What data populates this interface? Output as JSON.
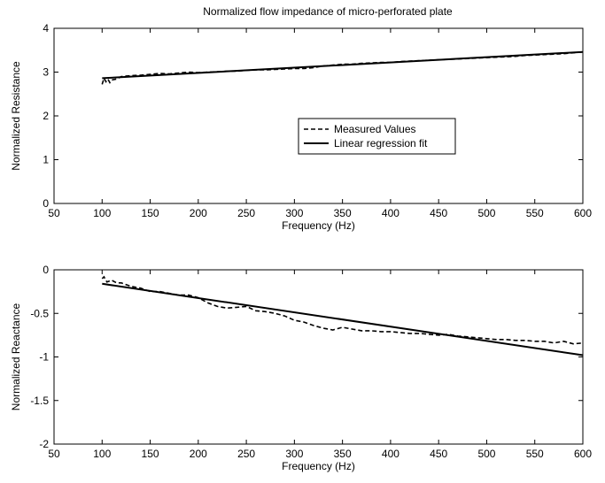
{
  "title": "Normalized flow impedance of micro-perforated plate",
  "chart_data": [
    {
      "type": "line",
      "xlabel": "Frequency (Hz)",
      "ylabel": "Normalized Resistance",
      "xlim": [
        50,
        600
      ],
      "ylim": [
        0,
        4
      ],
      "xticks": [
        "50",
        "100",
        "150",
        "200",
        "250",
        "300",
        "350",
        "400",
        "450",
        "500",
        "550",
        "600"
      ],
      "yticks": [
        "0",
        "1",
        "2",
        "3",
        "4"
      ],
      "grid": false,
      "legend": {
        "placement": "center-right",
        "entries": [
          "Measured Values",
          "Linear regression fit"
        ]
      },
      "series": [
        {
          "name": "Measured Values",
          "style": "dashed",
          "x": [
            100,
            102,
            104,
            106,
            108,
            110,
            115,
            120,
            130,
            140,
            150,
            160,
            170,
            180,
            190,
            200,
            210,
            220,
            230,
            240,
            250,
            260,
            270,
            280,
            290,
            300,
            310,
            320,
            330,
            340,
            350,
            360,
            370,
            380,
            390,
            400,
            410,
            420,
            430,
            440,
            450,
            460,
            470,
            480,
            490,
            500,
            510,
            520,
            530,
            540,
            550,
            560,
            570,
            580,
            590,
            600
          ],
          "values": [
            2.72,
            2.86,
            2.78,
            2.84,
            2.76,
            2.82,
            2.84,
            2.9,
            2.92,
            2.93,
            2.95,
            2.97,
            2.96,
            2.98,
            3.0,
            2.99,
            3.0,
            3.01,
            3.02,
            3.02,
            3.04,
            3.05,
            3.05,
            3.06,
            3.07,
            3.08,
            3.08,
            3.1,
            3.14,
            3.16,
            3.18,
            3.18,
            3.2,
            3.21,
            3.22,
            3.22,
            3.24,
            3.25,
            3.26,
            3.27,
            3.28,
            3.29,
            3.3,
            3.31,
            3.32,
            3.33,
            3.34,
            3.35,
            3.36,
            3.38,
            3.39,
            3.4,
            3.41,
            3.42,
            3.44,
            3.46
          ]
        },
        {
          "name": "Linear regression fit",
          "style": "solid",
          "x": [
            100,
            600
          ],
          "values": [
            2.86,
            3.46
          ]
        }
      ]
    },
    {
      "type": "line",
      "xlabel": "Frequency (Hz)",
      "ylabel": "Normalized Reactance",
      "xlim": [
        50,
        600
      ],
      "ylim": [
        -2,
        0
      ],
      "xticks": [
        "50",
        "100",
        "150",
        "200",
        "250",
        "300",
        "350",
        "400",
        "450",
        "500",
        "550",
        "600"
      ],
      "yticks": [
        "0",
        "-0.5",
        "-1",
        "-1.5",
        "-2"
      ],
      "grid": false,
      "series": [
        {
          "name": "Measured Values",
          "style": "dashed",
          "x": [
            100,
            102,
            105,
            110,
            115,
            120,
            130,
            140,
            150,
            160,
            170,
            180,
            190,
            200,
            210,
            220,
            230,
            240,
            250,
            260,
            270,
            280,
            290,
            300,
            310,
            320,
            330,
            340,
            350,
            360,
            370,
            380,
            390,
            400,
            410,
            420,
            430,
            440,
            450,
            460,
            470,
            480,
            490,
            500,
            510,
            520,
            530,
            540,
            550,
            560,
            570,
            580,
            590,
            600
          ],
          "values": [
            -0.1,
            -0.08,
            -0.14,
            -0.12,
            -0.15,
            -0.15,
            -0.19,
            -0.21,
            -0.25,
            -0.25,
            -0.27,
            -0.29,
            -0.29,
            -0.32,
            -0.38,
            -0.42,
            -0.44,
            -0.43,
            -0.42,
            -0.47,
            -0.48,
            -0.5,
            -0.53,
            -0.58,
            -0.6,
            -0.64,
            -0.67,
            -0.69,
            -0.66,
            -0.68,
            -0.7,
            -0.7,
            -0.71,
            -0.71,
            -0.72,
            -0.73,
            -0.73,
            -0.74,
            -0.75,
            -0.74,
            -0.76,
            -0.77,
            -0.78,
            -0.79,
            -0.8,
            -0.8,
            -0.81,
            -0.81,
            -0.82,
            -0.82,
            -0.84,
            -0.82,
            -0.85,
            -0.84
          ]
        },
        {
          "name": "Linear regression fit",
          "style": "solid",
          "x": [
            100,
            600
          ],
          "values": [
            -0.16,
            -0.98
          ]
        }
      ]
    }
  ]
}
